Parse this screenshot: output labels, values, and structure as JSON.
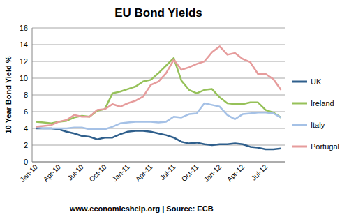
{
  "chart_data": {
    "type": "line",
    "title": "EU Bond Yields",
    "y_label": "10 Year Bond Yield %",
    "source": "www.economicshelp.org | Source: ECB",
    "categories": [
      "Jan-10",
      null,
      null,
      "Apr-10",
      null,
      null,
      "Jul-10",
      null,
      null,
      "Oct-10",
      null,
      null,
      "Jan-11",
      null,
      null,
      "Apr-11",
      null,
      null,
      "Jul-11",
      null,
      null,
      "Oct-11",
      null,
      null,
      "Jan-12",
      null,
      null,
      "Apr-12",
      null,
      null,
      "Jul-12",
      null,
      null
    ],
    "series": [
      {
        "name": "UK",
        "color": "#2f5f8c",
        "values": [
          4.0,
          4.0,
          4.0,
          3.9,
          3.6,
          3.4,
          3.1,
          3.0,
          2.7,
          2.9,
          2.9,
          3.3,
          3.6,
          3.7,
          3.7,
          3.6,
          3.4,
          3.2,
          2.9,
          2.4,
          2.2,
          2.3,
          2.1,
          2.0,
          2.1,
          2.1,
          2.2,
          2.1,
          1.8,
          1.7,
          1.5,
          1.5,
          1.6
        ]
      },
      {
        "name": "Ireland",
        "color": "#96c159",
        "values": [
          4.8,
          4.7,
          4.6,
          4.8,
          4.9,
          5.3,
          5.5,
          5.4,
          6.1,
          6.3,
          8.2,
          8.4,
          8.7,
          9.0,
          9.6,
          9.8,
          10.6,
          11.5,
          12.4,
          9.7,
          8.6,
          8.2,
          8.6,
          8.7,
          7.7,
          7.0,
          6.9,
          6.9,
          7.1,
          7.1,
          6.2,
          5.9,
          5.3
        ]
      },
      {
        "name": "Italy",
        "color": "#a5c1e6",
        "values": [
          4.1,
          4.0,
          4.0,
          4.0,
          4.0,
          4.1,
          4.1,
          3.9,
          3.9,
          3.9,
          4.2,
          4.6,
          4.7,
          4.8,
          4.8,
          4.8,
          4.7,
          4.8,
          5.4,
          5.3,
          5.7,
          5.8,
          7.0,
          6.8,
          6.6,
          5.6,
          5.1,
          5.7,
          5.8,
          5.9,
          5.9,
          5.8,
          5.3
        ]
      },
      {
        "name": "Portugal",
        "color": "#e69c9c",
        "values": [
          4.2,
          4.3,
          4.4,
          4.8,
          5.0,
          5.6,
          5.4,
          5.4,
          6.2,
          6.3,
          6.9,
          6.6,
          7.0,
          7.3,
          7.8,
          9.2,
          9.6,
          10.6,
          12.2,
          11.0,
          11.3,
          11.7,
          12.0,
          13.1,
          13.8,
          12.8,
          13.0,
          12.3,
          11.9,
          10.5,
          10.5,
          9.9,
          8.6
        ]
      }
    ],
    "ylim": [
      0,
      16
    ],
    "yticks": [
      0,
      2,
      4,
      6,
      8,
      10,
      12,
      14,
      16
    ],
    "grid": true,
    "legend": "right"
  }
}
